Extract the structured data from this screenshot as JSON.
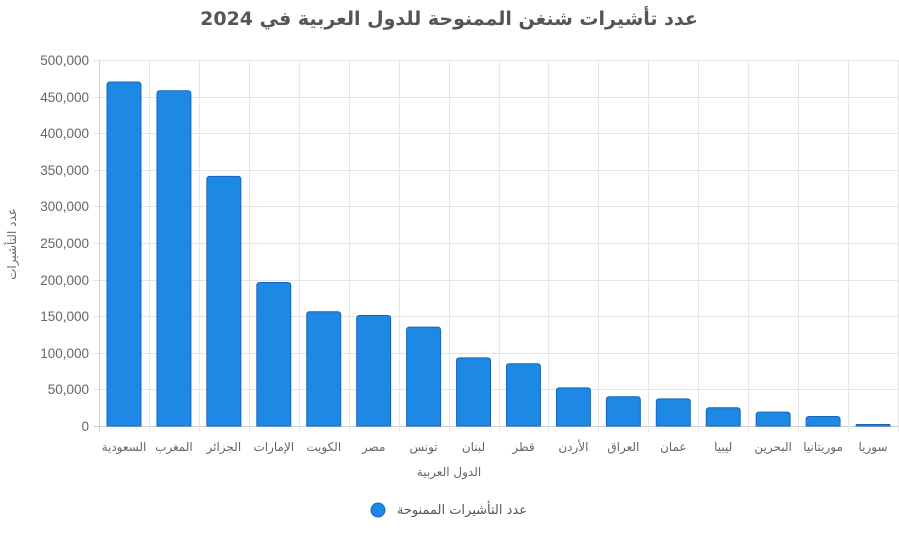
{
  "chart_data": {
    "type": "bar",
    "title": "عدد تأشيرات شنغن الممنوحة للدول العربية في 2024",
    "xlabel": "الدول العربية",
    "ylabel": "عدد التأشيرات",
    "categories": [
      "السعودية",
      "المغرب",
      "الجزائر",
      "الإمارات",
      "الكويت",
      "مصر",
      "تونس",
      "لبنان",
      "قطر",
      "الأردن",
      "العراق",
      "عمان",
      "ليبيا",
      "البحرين",
      "موريتانيا",
      "سوريا"
    ],
    "series": [
      {
        "name": "عدد التأشيرات الممنوحة",
        "values": [
          470000,
          458000,
          341000,
          196000,
          156000,
          151000,
          135000,
          93000,
          85000,
          52000,
          40000,
          37000,
          25000,
          19000,
          13000,
          2000
        ]
      }
    ],
    "ylim": [
      0,
      500000
    ],
    "yticks": [
      "0",
      "50,000",
      "100,000",
      "150,000",
      "200,000",
      "250,000",
      "300,000",
      "350,000",
      "400,000",
      "450,000",
      "500,000"
    ],
    "grid": true,
    "legend_position": "bottom",
    "bar_color": "#1e88e5",
    "bar_border_color": "#1565c0"
  }
}
